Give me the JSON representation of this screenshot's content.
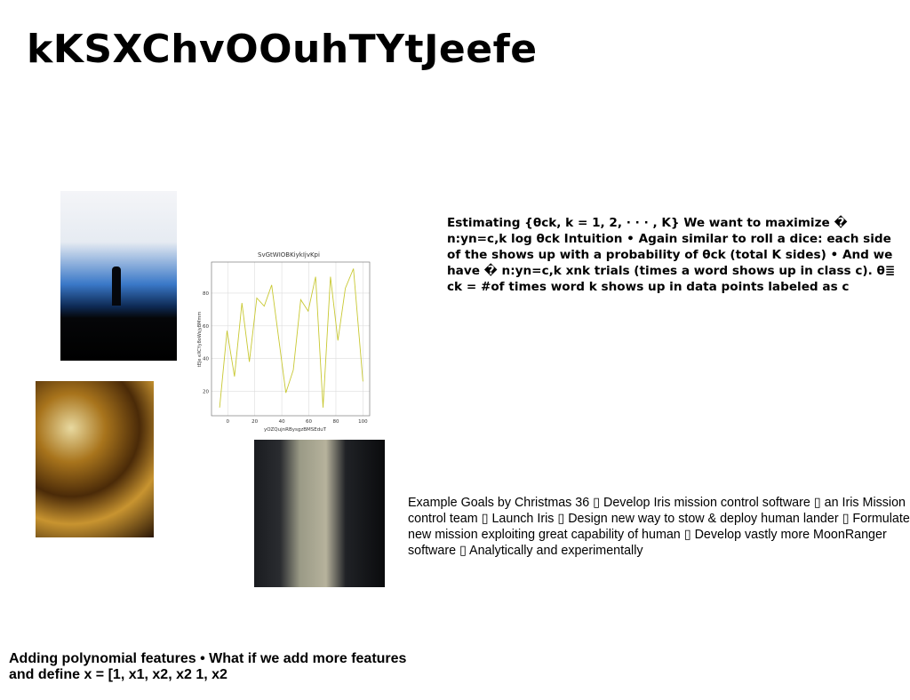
{
  "title": "kKSXChvOOuhTYtJeefe",
  "blocks": [
    "Estimating {θck, k = 1, 2, · · · , K} We want to maximize � n:yn=c,k log θck Intuition • Again similar to roll a dice: each side of the shows up with a probability of θck (total K sides) • And we have � n:yn=c,k xnk trials (times a word shows up in class c). θ≣ ck = #of times word k shows up in data points labeled as c",
    "Example Goals by Christmas 36 ▯ Develop Iris mission control software ▯ an Iris Mission control team ▯ Launch Iris ▯ Design new way to stow & deploy human lander ▯ Formulate new mission exploiting great capability of human ▯ Develop vastly more MoonRanger software ▯ Analytically and experimentally",
    "Adding polynomial features • What if we add more features and define x = [1, x1, x2, x2 1, x2"
  ],
  "chart_data": {
    "type": "line",
    "title": "SvGtWIOBKiykIjvKpi",
    "x_label": "yOZQujnRBysgzBMSEduT",
    "y_label": "tEJe eXCYy8oWsjyBMmm",
    "x": [
      -6,
      -0.5,
      5,
      10.5,
      16,
      21.5,
      27,
      32.5,
      43,
      48.5,
      54,
      59.5,
      65,
      70.5,
      76,
      81.5,
      87,
      93,
      100
    ],
    "values": [
      10,
      57,
      29,
      74,
      38,
      77,
      72,
      85,
      19,
      33,
      76,
      69,
      90,
      10,
      90,
      51,
      83,
      95,
      26
    ],
    "color": "#c8c832",
    "xlim": [
      -12,
      105
    ],
    "ylim": [
      5,
      99
    ],
    "xticks": [
      0,
      20,
      40,
      60,
      80,
      100
    ],
    "yticks": [
      20,
      40,
      60,
      80
    ],
    "grid": true
  }
}
